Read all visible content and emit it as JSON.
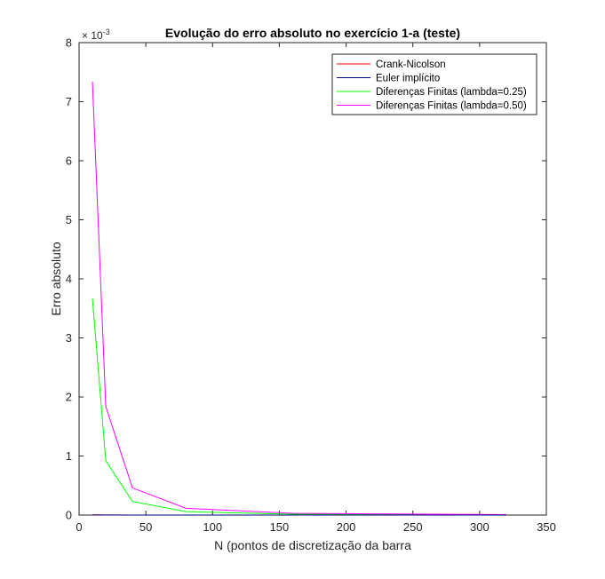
{
  "chart_data": {
    "type": "line",
    "title": "Evolução do erro absoluto no exercício 1-a (teste)",
    "xlabel": "N (pontos de discretização da barra",
    "ylabel": "Erro absoluto",
    "xlim": [
      0,
      350
    ],
    "ylim": [
      0,
      0.008
    ],
    "xticks": [
      0,
      50,
      100,
      150,
      200,
      250,
      300,
      350
    ],
    "yticks": [
      0,
      0.001,
      0.002,
      0.003,
      0.004,
      0.005,
      0.006,
      0.007,
      0.008
    ],
    "ytick_labels": [
      "0",
      "1",
      "2",
      "3",
      "4",
      "5",
      "6",
      "7",
      "8"
    ],
    "y_exponent_base": "× 10",
    "y_exponent_power": "-3",
    "grid": false,
    "legend_position": "top-right",
    "series": [
      {
        "name": "Crank-Nicolson",
        "color": "#ff0000",
        "x": [
          10,
          20,
          40,
          80,
          160,
          320
        ],
        "y": [
          1e-06,
          4e-07,
          1e-07,
          3e-08,
          1e-08,
          2e-09
        ]
      },
      {
        "name": "Euler implícito",
        "color": "#00007f",
        "x": [
          10,
          20,
          40,
          80,
          160,
          320
        ],
        "y": [
          3e-06,
          1.2e-06,
          5e-07,
          2e-07,
          8e-08,
          3e-08
        ]
      },
      {
        "name": "Diferenças Finitas (lambda=0.25)",
        "color": "#00ff00",
        "x": [
          10,
          20,
          40,
          80,
          160,
          320
        ],
        "y": [
          0.00367,
          0.00092,
          0.00023,
          5.8e-05,
          1.5e-05,
          4e-06
        ]
      },
      {
        "name": "Diferenças Finitas (lambda=0.50)",
        "color": "#ff00ff",
        "x": [
          10,
          20,
          40,
          80,
          160,
          320
        ],
        "y": [
          0.00734,
          0.00184,
          0.00046,
          0.000115,
          3e-05,
          7e-06
        ]
      }
    ]
  }
}
